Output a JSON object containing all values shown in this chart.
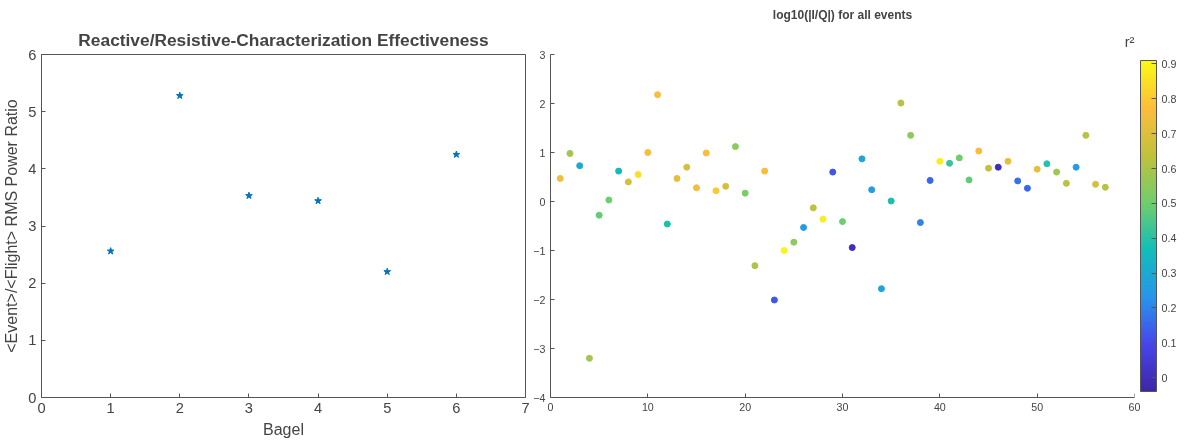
{
  "chart_data": [
    {
      "type": "scatter",
      "title": "Reactive/Resistive-Characterization Effectiveness",
      "xlabel": "Bagel",
      "ylabel": "<Event>/<Flight> RMS Power Ratio",
      "x": [
        1,
        2,
        3,
        4,
        5,
        6
      ],
      "series": [
        {
          "color": "#0072bd",
          "values": [
            2.56,
            5.28,
            3.53,
            3.44,
            2.2,
            4.25
          ]
        }
      ],
      "xlim": [
        0,
        7
      ],
      "ylim": [
        0,
        6
      ],
      "xticks": [
        0,
        1,
        2,
        3,
        4,
        5,
        6,
        7
      ],
      "yticks": [
        0,
        1,
        2,
        3,
        4,
        5,
        6
      ],
      "grid": false,
      "marker": "star"
    },
    {
      "type": "scatter",
      "title": "log10(|I/Q|) for all events",
      "clabel": "r²",
      "x": [
        1,
        2,
        3,
        4,
        5,
        6,
        7,
        8,
        9,
        10,
        11,
        12,
        13,
        14,
        15,
        16,
        17,
        18,
        19,
        20,
        21,
        22,
        23,
        24,
        25,
        26,
        27,
        28,
        29,
        30,
        31,
        32,
        33,
        34,
        35,
        36,
        37,
        38,
        39,
        40,
        41,
        42,
        43,
        44,
        45,
        46,
        47,
        48,
        49,
        50,
        51,
        52,
        53,
        54,
        55,
        56,
        57
      ],
      "values": [
        0.47,
        0.98,
        0.73,
        -3.2,
        -0.28,
        0.03,
        0.62,
        0.4,
        0.55,
        1.0,
        2.18,
        -0.46,
        0.47,
        0.7,
        0.28,
        0.99,
        0.22,
        0.31,
        1.12,
        0.17,
        -1.31,
        0.62,
        -2.01,
        -1.0,
        -0.83,
        -0.53,
        -0.13,
        -0.36,
        0.6,
        -0.41,
        -0.94,
        0.87,
        0.24,
        -1.78,
        0.01,
        2.01,
        1.35,
        -0.43,
        0.43,
        0.82,
        0.78,
        0.89,
        0.44,
        1.03,
        0.68,
        0.7,
        0.82,
        0.42,
        0.27,
        0.66,
        0.77,
        0.6,
        0.37,
        0.7,
        1.35,
        0.35,
        0.29
      ],
      "cvalues": [
        0.75,
        0.58,
        0.3,
        0.58,
        0.48,
        0.5,
        0.35,
        0.68,
        0.85,
        0.76,
        0.77,
        0.38,
        0.72,
        0.68,
        0.75,
        0.76,
        0.8,
        0.68,
        0.55,
        0.52,
        0.6,
        0.76,
        0.12,
        0.9,
        0.55,
        0.25,
        0.63,
        0.88,
        0.12,
        0.5,
        0.0,
        0.28,
        0.25,
        0.28,
        0.38,
        0.62,
        0.55,
        0.2,
        0.15,
        0.88,
        0.42,
        0.5,
        0.48,
        0.76,
        0.65,
        0.0,
        0.73,
        0.17,
        0.15,
        0.72,
        0.4,
        0.58,
        0.63,
        0.25,
        0.62,
        0.68,
        0.62
      ],
      "clim": [
        -0.04,
        0.91
      ],
      "cticks": [
        0,
        0.1,
        0.2,
        0.3,
        0.4,
        0.5,
        0.6,
        0.7,
        0.8,
        0.9
      ],
      "xlim": [
        0,
        60
      ],
      "ylim": [
        -4,
        3
      ],
      "xticks": [
        0,
        10,
        20,
        30,
        40,
        50,
        60
      ],
      "yticks": [
        -4,
        -3,
        -2,
        -1,
        0,
        1,
        2,
        3
      ],
      "grid": false,
      "marker": "circle"
    }
  ]
}
